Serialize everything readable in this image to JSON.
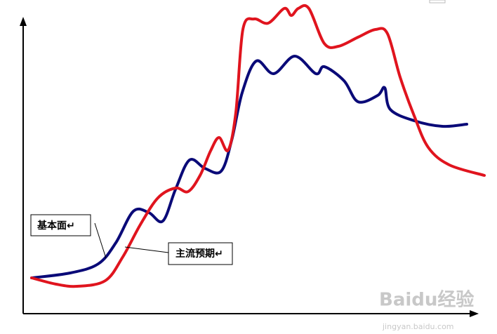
{
  "labels": {
    "fundamental": "基本面↵",
    "expectation": "主流预期↵"
  },
  "watermark": {
    "brand": "Baidu经验",
    "url": "jingyan.baidu.com"
  }
}
